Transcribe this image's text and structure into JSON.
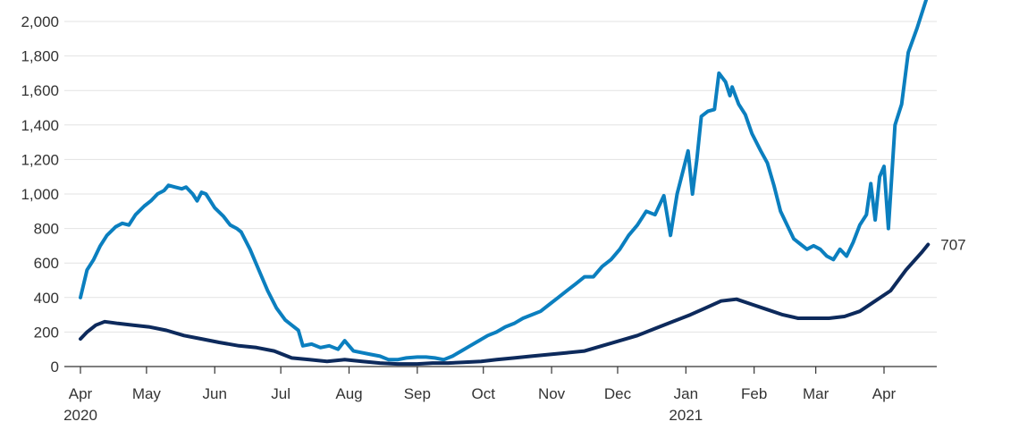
{
  "chart_data": {
    "type": "line",
    "title": "",
    "xlabel": "",
    "ylabel": "",
    "ylim": [
      0,
      2000
    ],
    "yticks": [
      0,
      200,
      400,
      600,
      800,
      1000,
      1200,
      1400,
      1600,
      1800,
      2000
    ],
    "ytick_labels": [
      "0",
      "200",
      "400",
      "600",
      "800",
      "1,000",
      "1,200",
      "1,400",
      "1,600",
      "1,800",
      "2,000"
    ],
    "xticks": [
      {
        "date": "2020-04-01",
        "label": "Apr",
        "year_label": "2020"
      },
      {
        "date": "2020-05-01",
        "label": "May",
        "year_label": ""
      },
      {
        "date": "2020-06-01",
        "label": "Jun",
        "year_label": ""
      },
      {
        "date": "2020-07-01",
        "label": "Jul",
        "year_label": ""
      },
      {
        "date": "2020-08-01",
        "label": "Aug",
        "year_label": ""
      },
      {
        "date": "2020-09-01",
        "label": "Sep",
        "year_label": ""
      },
      {
        "date": "2020-10-01",
        "label": "Oct",
        "year_label": ""
      },
      {
        "date": "2020-11-01",
        "label": "Nov",
        "year_label": ""
      },
      {
        "date": "2020-12-01",
        "label": "Dec",
        "year_label": ""
      },
      {
        "date": "2021-01-01",
        "label": "Jan",
        "year_label": "2021"
      },
      {
        "date": "2021-02-01",
        "label": "Feb",
        "year_label": ""
      },
      {
        "date": "2021-03-01",
        "label": "Mar",
        "year_label": ""
      },
      {
        "date": "2021-04-01",
        "label": "Apr",
        "year_label": ""
      }
    ],
    "xlim": [
      "2020-04-01",
      "2021-04-28"
    ],
    "grid": true,
    "series": [
      {
        "color": "#0b7fbf",
        "points": [
          [
            "2020-04-01",
            400
          ],
          [
            "2020-04-04",
            560
          ],
          [
            "2020-04-07",
            620
          ],
          [
            "2020-04-10",
            700
          ],
          [
            "2020-04-13",
            760
          ],
          [
            "2020-04-17",
            810
          ],
          [
            "2020-04-20",
            830
          ],
          [
            "2020-04-23",
            820
          ],
          [
            "2020-04-26",
            880
          ],
          [
            "2020-04-30",
            930
          ],
          [
            "2020-05-03",
            960
          ],
          [
            "2020-05-06",
            1000
          ],
          [
            "2020-05-09",
            1020
          ],
          [
            "2020-05-11",
            1050
          ],
          [
            "2020-05-14",
            1040
          ],
          [
            "2020-05-17",
            1030
          ],
          [
            "2020-05-19",
            1040
          ],
          [
            "2020-05-22",
            1000
          ],
          [
            "2020-05-24",
            960
          ],
          [
            "2020-05-26",
            1010
          ],
          [
            "2020-05-28",
            1000
          ],
          [
            "2020-06-01",
            920
          ],
          [
            "2020-06-05",
            870
          ],
          [
            "2020-06-08",
            820
          ],
          [
            "2020-06-11",
            800
          ],
          [
            "2020-06-13",
            780
          ],
          [
            "2020-06-17",
            680
          ],
          [
            "2020-06-21",
            560
          ],
          [
            "2020-06-25",
            440
          ],
          [
            "2020-06-29",
            340
          ],
          [
            "2020-07-03",
            270
          ],
          [
            "2020-07-06",
            240
          ],
          [
            "2020-07-09",
            210
          ],
          [
            "2020-07-11",
            120
          ],
          [
            "2020-07-15",
            130
          ],
          [
            "2020-07-19",
            110
          ],
          [
            "2020-07-23",
            120
          ],
          [
            "2020-07-27",
            100
          ],
          [
            "2020-07-30",
            150
          ],
          [
            "2020-08-03",
            90
          ],
          [
            "2020-08-07",
            80
          ],
          [
            "2020-08-11",
            70
          ],
          [
            "2020-08-15",
            60
          ],
          [
            "2020-08-19",
            40
          ],
          [
            "2020-08-23",
            40
          ],
          [
            "2020-08-27",
            50
          ],
          [
            "2020-09-01",
            55
          ],
          [
            "2020-09-05",
            55
          ],
          [
            "2020-09-09",
            50
          ],
          [
            "2020-09-13",
            40
          ],
          [
            "2020-09-17",
            60
          ],
          [
            "2020-09-21",
            90
          ],
          [
            "2020-09-25",
            120
          ],
          [
            "2020-09-29",
            150
          ],
          [
            "2020-10-03",
            180
          ],
          [
            "2020-10-07",
            200
          ],
          [
            "2020-10-11",
            230
          ],
          [
            "2020-10-15",
            250
          ],
          [
            "2020-10-19",
            280
          ],
          [
            "2020-10-23",
            300
          ],
          [
            "2020-10-27",
            320
          ],
          [
            "2020-10-31",
            360
          ],
          [
            "2020-11-04",
            400
          ],
          [
            "2020-11-08",
            440
          ],
          [
            "2020-11-12",
            480
          ],
          [
            "2020-11-16",
            520
          ],
          [
            "2020-11-20",
            520
          ],
          [
            "2020-11-24",
            580
          ],
          [
            "2020-11-28",
            620
          ],
          [
            "2020-12-02",
            680
          ],
          [
            "2020-12-06",
            760
          ],
          [
            "2020-12-10",
            820
          ],
          [
            "2020-12-14",
            900
          ],
          [
            "2020-12-18",
            880
          ],
          [
            "2020-12-22",
            990
          ],
          [
            "2020-12-25",
            760
          ],
          [
            "2020-12-28",
            1000
          ],
          [
            "2020-12-31",
            1150
          ],
          [
            "2021-01-02",
            1250
          ],
          [
            "2021-01-04",
            1000
          ],
          [
            "2021-01-06",
            1200
          ],
          [
            "2021-01-08",
            1450
          ],
          [
            "2021-01-11",
            1480
          ],
          [
            "2021-01-14",
            1490
          ],
          [
            "2021-01-16",
            1700
          ],
          [
            "2021-01-19",
            1650
          ],
          [
            "2021-01-21",
            1570
          ],
          [
            "2021-01-22",
            1620
          ],
          [
            "2021-01-25",
            1520
          ],
          [
            "2021-01-28",
            1460
          ],
          [
            "2021-01-31",
            1350
          ],
          [
            "2021-02-04",
            1250
          ],
          [
            "2021-02-07",
            1180
          ],
          [
            "2021-02-10",
            1050
          ],
          [
            "2021-02-13",
            900
          ],
          [
            "2021-02-16",
            820
          ],
          [
            "2021-02-19",
            740
          ],
          [
            "2021-02-22",
            710
          ],
          [
            "2021-02-25",
            680
          ],
          [
            "2021-02-28",
            700
          ],
          [
            "2021-03-03",
            680
          ],
          [
            "2021-03-06",
            640
          ],
          [
            "2021-03-09",
            620
          ],
          [
            "2021-03-12",
            680
          ],
          [
            "2021-03-15",
            640
          ],
          [
            "2021-03-18",
            720
          ],
          [
            "2021-03-21",
            820
          ],
          [
            "2021-03-24",
            880
          ],
          [
            "2021-03-26",
            1060
          ],
          [
            "2021-03-28",
            850
          ],
          [
            "2021-03-30",
            1100
          ],
          [
            "2021-04-01",
            1160
          ],
          [
            "2021-04-03",
            800
          ],
          [
            "2021-04-06",
            1400
          ],
          [
            "2021-04-09",
            1520
          ],
          [
            "2021-04-12",
            1820
          ],
          [
            "2021-04-16",
            1960
          ],
          [
            "2021-04-19",
            2080
          ],
          [
            "2021-04-21",
            2160
          ]
        ]
      },
      {
        "color": "#0d2a5c",
        "end_label": "707",
        "points": [
          [
            "2020-04-01",
            160
          ],
          [
            "2020-04-04",
            200
          ],
          [
            "2020-04-08",
            240
          ],
          [
            "2020-04-12",
            260
          ],
          [
            "2020-04-18",
            250
          ],
          [
            "2020-04-25",
            240
          ],
          [
            "2020-05-02",
            230
          ],
          [
            "2020-05-10",
            210
          ],
          [
            "2020-05-18",
            180
          ],
          [
            "2020-05-26",
            160
          ],
          [
            "2020-06-03",
            140
          ],
          [
            "2020-06-12",
            120
          ],
          [
            "2020-06-20",
            110
          ],
          [
            "2020-06-28",
            90
          ],
          [
            "2020-07-06",
            50
          ],
          [
            "2020-07-14",
            40
          ],
          [
            "2020-07-22",
            30
          ],
          [
            "2020-07-30",
            40
          ],
          [
            "2020-08-07",
            30
          ],
          [
            "2020-08-15",
            20
          ],
          [
            "2020-08-23",
            15
          ],
          [
            "2020-09-01",
            15
          ],
          [
            "2020-09-08",
            20
          ],
          [
            "2020-09-15",
            20
          ],
          [
            "2020-09-22",
            25
          ],
          [
            "2020-09-30",
            30
          ],
          [
            "2020-10-07",
            40
          ],
          [
            "2020-10-15",
            50
          ],
          [
            "2020-10-23",
            60
          ],
          [
            "2020-10-31",
            70
          ],
          [
            "2020-11-08",
            80
          ],
          [
            "2020-11-16",
            90
          ],
          [
            "2020-11-24",
            120
          ],
          [
            "2020-12-02",
            150
          ],
          [
            "2020-12-10",
            180
          ],
          [
            "2020-12-18",
            220
          ],
          [
            "2020-12-26",
            260
          ],
          [
            "2021-01-03",
            300
          ],
          [
            "2021-01-10",
            340
          ],
          [
            "2021-01-17",
            380
          ],
          [
            "2021-01-24",
            390
          ],
          [
            "2021-01-31",
            360
          ],
          [
            "2021-02-07",
            330
          ],
          [
            "2021-02-14",
            300
          ],
          [
            "2021-02-21",
            280
          ],
          [
            "2021-02-28",
            280
          ],
          [
            "2021-03-07",
            280
          ],
          [
            "2021-03-14",
            290
          ],
          [
            "2021-03-21",
            320
          ],
          [
            "2021-03-28",
            380
          ],
          [
            "2021-04-04",
            440
          ],
          [
            "2021-04-11",
            560
          ],
          [
            "2021-04-18",
            660
          ],
          [
            "2021-04-21",
            707
          ]
        ]
      }
    ]
  }
}
